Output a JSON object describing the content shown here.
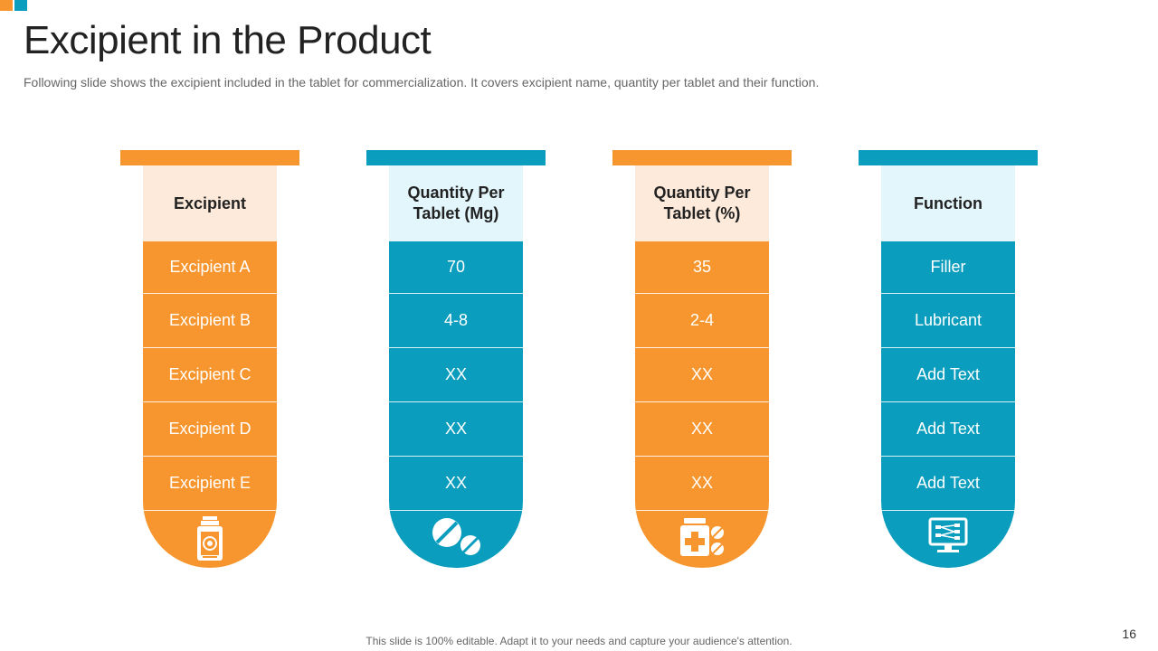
{
  "title": "Excipient in the Product",
  "subtitle": "Following slide shows the excipient included in the tablet for commercialization. It covers excipient name, quantity per tablet and their function.",
  "columns": [
    {
      "header": "Excipient",
      "rows": [
        "Excipient A",
        "Excipient B",
        "Excipient C",
        "Excipient D",
        "Excipient E"
      ],
      "icon": "medicine-bottle-icon",
      "color": "#F7962E"
    },
    {
      "header": "Quantity Per Tablet (Mg)",
      "rows": [
        "70",
        "4-8",
        "XX",
        "XX",
        "XX"
      ],
      "icon": "pills-icon",
      "color": "#0A9DBE"
    },
    {
      "header": "Quantity Per Tablet (%)",
      "rows": [
        "35",
        "2-4",
        "XX",
        "XX",
        "XX"
      ],
      "icon": "medicine-jar-pills-icon",
      "color": "#F7962E"
    },
    {
      "header": "Function",
      "rows": [
        "Filler",
        "Lubricant",
        "Add Text",
        "Add Text",
        "Add Text"
      ],
      "icon": "monitor-network-icon",
      "color": "#0A9DBE"
    }
  ],
  "footer": "This slide is 100% editable. Adapt it to your needs and capture your audience's attention.",
  "page_number": "16",
  "colors": {
    "orange": "#F7962E",
    "blue": "#0A9DBE",
    "orange_light": "#FDEADA",
    "blue_light": "#E3F6FC"
  }
}
